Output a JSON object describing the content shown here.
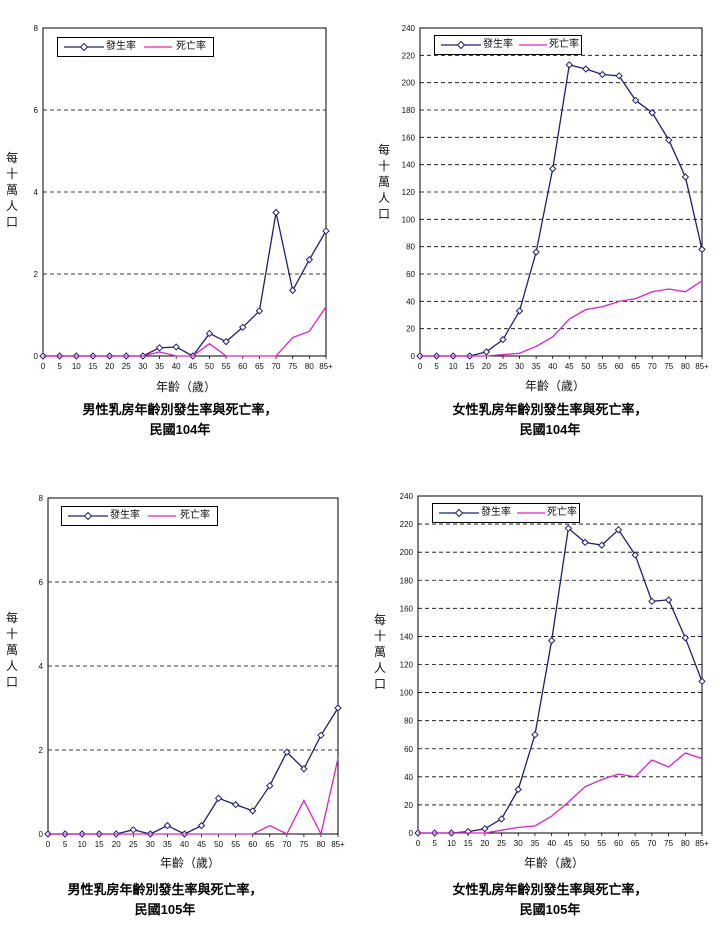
{
  "chart_data": [
    {
      "type": "line",
      "title": "男性乳房年齡別發生率與死亡率，",
      "subtitle": "民國104年",
      "xlabel": "年齡（歲）",
      "ylabel": "每十萬人口",
      "categories": [
        "0",
        "5",
        "10",
        "15",
        "20",
        "25",
        "30",
        "35",
        "40",
        "45",
        "50",
        "55",
        "60",
        "65",
        "70",
        "75",
        "80",
        "85+"
      ],
      "ylim": [
        0,
        8
      ],
      "yticks": [
        "0",
        "2",
        "4",
        "6",
        "8"
      ],
      "legend_position": "top-left",
      "grid": "horizontal-dashed",
      "series": [
        {
          "name": "發生率",
          "color": "#1f1f7a",
          "marker": "diamond",
          "values": [
            0,
            0,
            0,
            0,
            0,
            0,
            0,
            0.2,
            0.22,
            0,
            0.55,
            0.35,
            0.7,
            1.1,
            3.5,
            1.6,
            2.35,
            3.05
          ]
        },
        {
          "name": "死亡率",
          "color": "#e020c8",
          "marker": "none",
          "values": [
            0,
            0,
            0,
            0,
            0,
            0,
            0,
            0.1,
            0,
            0,
            0.3,
            0,
            0,
            0,
            0,
            0.45,
            0.6,
            1.2
          ]
        }
      ]
    },
    {
      "type": "line",
      "title": "女性乳房年齡別發生率與死亡率，",
      "subtitle": "民國104年",
      "xlabel": "年齡（歲）",
      "ylabel": "每十萬人口",
      "categories": [
        "0",
        "5",
        "10",
        "15",
        "20",
        "25",
        "30",
        "35",
        "40",
        "45",
        "50",
        "55",
        "60",
        "65",
        "70",
        "75",
        "80",
        "85+"
      ],
      "ylim": [
        0,
        240
      ],
      "yticks": [
        "0",
        "20",
        "40",
        "60",
        "80",
        "100",
        "120",
        "140",
        "160",
        "180",
        "200",
        "220",
        "240"
      ],
      "legend_position": "top-left",
      "grid": "horizontal-dashed",
      "series": [
        {
          "name": "發生率",
          "color": "#1f1f7a",
          "marker": "diamond",
          "values": [
            0,
            0,
            0,
            0,
            3,
            12,
            33,
            76,
            137,
            213,
            210,
            206,
            205,
            187,
            178,
            158,
            131,
            78
          ]
        },
        {
          "name": "死亡率",
          "color": "#e020c8",
          "marker": "none",
          "values": [
            0,
            0,
            0,
            0,
            0,
            1,
            2,
            7,
            14,
            27,
            34,
            36,
            40,
            42,
            47,
            49,
            47,
            55
          ]
        }
      ]
    },
    {
      "type": "line",
      "title": "男性乳房年齡別發生率與死亡率，",
      "subtitle": "民國105年",
      "xlabel": "年齡（歲）",
      "ylabel": "每十萬人口",
      "categories": [
        "0",
        "5",
        "10",
        "15",
        "20",
        "25",
        "30",
        "35",
        "40",
        "45",
        "50",
        "55",
        "60",
        "65",
        "70",
        "75",
        "80",
        "85+"
      ],
      "ylim": [
        0,
        8
      ],
      "yticks": [
        "0",
        "2",
        "4",
        "6",
        "8"
      ],
      "legend_position": "top-left",
      "grid": "horizontal-dashed",
      "series": [
        {
          "name": "發生率",
          "color": "#1f1f7a",
          "marker": "diamond",
          "values": [
            0,
            0,
            0,
            0,
            0,
            0.1,
            0,
            0.2,
            0,
            0.2,
            0.85,
            0.7,
            0.55,
            1.15,
            1.95,
            1.55,
            2.35,
            3.0
          ]
        },
        {
          "name": "死亡率",
          "color": "#e020c8",
          "marker": "none",
          "values": [
            0,
            0,
            0,
            0,
            0,
            0,
            0,
            0,
            0,
            0,
            0,
            0,
            0,
            0.2,
            0,
            0.8,
            0,
            1.8
          ]
        }
      ]
    },
    {
      "type": "line",
      "title": "女性乳房年齡別發生率與死亡率，",
      "subtitle": "民國105年",
      "xlabel": "年齡（歲）",
      "ylabel": "每十萬人口",
      "categories": [
        "0",
        "5",
        "10",
        "15",
        "20",
        "25",
        "30",
        "35",
        "40",
        "45",
        "50",
        "55",
        "60",
        "65",
        "70",
        "75",
        "80",
        "85+"
      ],
      "ylim": [
        0,
        240
      ],
      "yticks": [
        "0",
        "20",
        "40",
        "60",
        "80",
        "100",
        "120",
        "140",
        "160",
        "180",
        "200",
        "220",
        "240"
      ],
      "legend_position": "top-left",
      "grid": "horizontal-dashed",
      "series": [
        {
          "name": "發生率",
          "color": "#1f1f7a",
          "marker": "diamond",
          "values": [
            0,
            0,
            0,
            1,
            3,
            10,
            31,
            70,
            137,
            217,
            207,
            205,
            216,
            198,
            165,
            166,
            139,
            108
          ]
        },
        {
          "name": "死亡率",
          "color": "#e020c8",
          "marker": "none",
          "values": [
            0,
            0,
            0,
            0,
            0,
            2,
            4,
            5,
            12,
            22,
            33,
            38,
            42,
            40,
            52,
            47,
            57,
            53
          ]
        }
      ]
    }
  ]
}
